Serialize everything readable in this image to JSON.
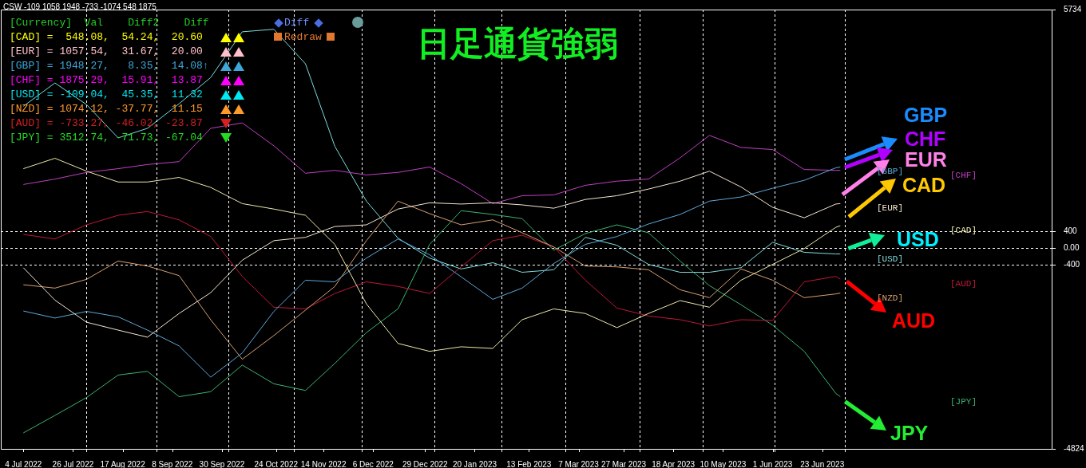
{
  "chart_data": {
    "type": "line",
    "title": "日足通貨強弱",
    "x": [
      "2022-07-04",
      "2022-07-18",
      "2022-08-01",
      "2022-08-15",
      "2022-08-28",
      "2022-09-11",
      "2022-09-25",
      "2022-10-09",
      "2022-10-23",
      "2022-11-06",
      "2022-11-19",
      "2022-12-03",
      "2022-12-17",
      "2022-12-31",
      "2023-01-14",
      "2023-01-28",
      "2023-02-10",
      "2023-02-24",
      "2023-03-10",
      "2023-03-24",
      "2023-04-07",
      "2023-04-21",
      "2023-05-04",
      "2023-05-18",
      "2023-06-01",
      "2023-06-15",
      "2023-06-29",
      "2023-07-01"
    ],
    "series": [
      {
        "name": "[CAD]",
        "color": "#eee8aa",
        "values": [
          1910,
          2160,
          1850,
          1590,
          1590,
          1700,
          1460,
          1070,
          940,
          790,
          90,
          -1340,
          -2290,
          -2480,
          -2370,
          -2410,
          -1720,
          -1460,
          -1570,
          -1910,
          -1570,
          -1260,
          -1420,
          -770,
          -390,
          -10,
          500,
          540
        ]
      },
      {
        "name": "[EUR]",
        "color": "#f5e6d3",
        "values": [
          -470,
          -1250,
          -1780,
          -1970,
          -2140,
          -1570,
          -1070,
          -290,
          180,
          260,
          520,
          560,
          940,
          1090,
          1060,
          1090,
          1040,
          960,
          1170,
          1260,
          1420,
          1610,
          1850,
          1470,
          980,
          730,
          1060,
          1070
        ]
      },
      {
        "name": "[GBP]",
        "color": "#5fa8d8",
        "values": [
          -1510,
          -1680,
          -1520,
          -1650,
          -1970,
          -2350,
          -3100,
          -2520,
          -1520,
          -770,
          -810,
          -240,
          220,
          -160,
          -690,
          -1230,
          -960,
          -370,
          90,
          280,
          580,
          810,
          1130,
          1230,
          1440,
          1630,
          1930,
          1950
        ]
      },
      {
        "name": "[CHF]",
        "color": "#c040c0",
        "values": [
          1530,
          1660,
          1820,
          1910,
          2010,
          2080,
          2880,
          3010,
          2460,
          1800,
          1870,
          1760,
          1820,
          1950,
          1550,
          1070,
          1260,
          1280,
          1510,
          1610,
          1660,
          2170,
          2710,
          2420,
          2370,
          1890,
          1870,
          1870
        ]
      },
      {
        "name": "[USD]",
        "color": "#7fdcdc",
        "values": [
          3410,
          3970,
          3450,
          2650,
          2880,
          3470,
          4100,
          5200,
          5260,
          4430,
          2450,
          1130,
          240,
          -240,
          -500,
          -350,
          -580,
          -520,
          260,
          70,
          -390,
          -580,
          -580,
          -470,
          140,
          -100,
          -140,
          -140
        ]
      },
      {
        "name": "[NZD]",
        "color": "#d8a070",
        "values": [
          -880,
          -960,
          -750,
          -310,
          -430,
          -660,
          -1720,
          -2670,
          -2100,
          -1490,
          -920,
          180,
          1130,
          830,
          560,
          680,
          370,
          30,
          -430,
          -450,
          -520,
          -1000,
          -1190,
          -500,
          -770,
          -1190,
          -1100,
          -1080
        ]
      },
      {
        "name": "[AUD]",
        "color": "#c01838",
        "values": [
          330,
          220,
          560,
          790,
          880,
          680,
          280,
          -680,
          -1420,
          -1460,
          -1090,
          -810,
          -920,
          -1090,
          -450,
          180,
          310,
          30,
          -770,
          -1440,
          -1630,
          -1720,
          -1870,
          -1720,
          -1740,
          -810,
          -680,
          -740
        ]
      },
      {
        "name": "[JPY]",
        "color": "#3cb371",
        "values": [
          -4440,
          -4020,
          -3590,
          -3050,
          -2960,
          -3570,
          -3450,
          -2810,
          -3260,
          -3420,
          -2770,
          -2030,
          -1460,
          90,
          900,
          810,
          710,
          -50,
          350,
          560,
          370,
          -310,
          -900,
          -1360,
          -1850,
          -2480,
          -3490,
          -3570
        ]
      }
    ],
    "xlim": [
      "2022-06-24",
      "2023-10-03"
    ],
    "xticks": [
      {
        "value": "2022-07-04",
        "label": "4 Jul 2022"
      },
      {
        "value": "2022-07-26",
        "label": "26 Jul 2022"
      },
      {
        "value": "2022-08-17",
        "label": "17 Aug 2022"
      },
      {
        "value": "2022-09-08",
        "label": "8 Sep 2022"
      },
      {
        "value": "2022-09-30",
        "label": "30 Sep 2022"
      },
      {
        "value": "2022-10-24",
        "label": "24 Oct 2022"
      },
      {
        "value": "2022-11-14",
        "label": "14 Nov 2022"
      },
      {
        "value": "2022-12-06",
        "label": "6 Dec 2022"
      },
      {
        "value": "2022-12-29",
        "label": "29 Dec 2022"
      },
      {
        "value": "2023-01-20",
        "label": "20 Jan 2023"
      },
      {
        "value": "2023-02-13",
        "label": "13 Feb 2023"
      },
      {
        "value": "2023-03-07",
        "label": "7 Mar 2023"
      },
      {
        "value": "2023-03-27",
        "label": "27 Mar 2023"
      },
      {
        "value": "2023-04-18",
        "label": "18 Apr 2023"
      },
      {
        "value": "2023-05-10",
        "label": "10 May 2023"
      },
      {
        "value": "2023-06-01",
        "label": "1 Jun 2023"
      },
      {
        "value": "2023-06-23",
        "label": "23 Jun 2023"
      },
      {
        "value": "2022-08-01",
        "label": null
      },
      {
        "value": "2022-09-01",
        "label": null
      },
      {
        "value": "2022-10-03",
        "label": null
      },
      {
        "value": "2022-11-01",
        "label": null
      },
      {
        "value": "2022-12-01",
        "label": null
      },
      {
        "value": "2023-01-02",
        "label": null
      },
      {
        "value": "2023-02-01",
        "label": null
      },
      {
        "value": "2023-03-01",
        "label": null
      },
      {
        "value": "2023-04-03",
        "label": null
      },
      {
        "value": "2023-05-01",
        "label": null
      },
      {
        "value": "2023-06-02",
        "label": null
      },
      {
        "value": "2023-07-03",
        "label": null
      }
    ],
    "ylim": [
      -4824,
      5734
    ],
    "yticks": [
      5734,
      400,
      {
        "value": 0,
        "label": "0.00"
      },
      -400,
      -4824
    ],
    "grid": true,
    "annotations": [
      "CSW -109 1058 1948 -733 -1074 548 1875",
      "[Currency]  Val    Diff2    Diff",
      "[CAD] =  548.08,  54.24,  20.60",
      "[EUR] = 1057.54,  31.67,  20.00",
      "[GBP] = 1948.27,   8.35,  14.08↑",
      "[CHF] = 1875.29,  15.91,  13.87",
      "[USD] = -109.04,  45.35,  11.32",
      "[NZD] = 1074.12, -37.77,  11.15",
      "[AUD] = -733.27, -46.02, -23.87",
      "[JPY] = 3512.74, -71.73, -67.04",
      "Diff",
      "Redraw",
      "GBP",
      "CHF",
      "EUR",
      "CAD",
      {
        "text": "USD",
        "x": "2023-07-01",
        "y": -140
      },
      {
        "text": "AUD",
        "x": "2023-07-01",
        "y": -740
      },
      {
        "text": "JPY",
        "x": "2023-07-01",
        "y": -3570
      }
    ]
  }
}
